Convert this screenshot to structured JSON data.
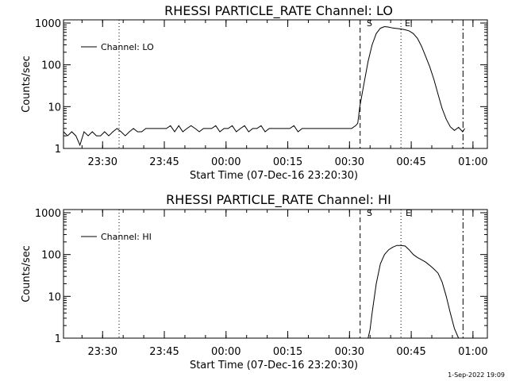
{
  "chart_data": [
    {
      "type": "line",
      "title": "RHESSI PARTICLE_RATE Channel: LO",
      "xlabel": "Start Time (07-Dec-16 23:20:30)",
      "ylabel": "Counts/sec",
      "yscale": "log",
      "ylim": [
        1,
        1000
      ],
      "xlim_minutes": [
        0,
        103
      ],
      "x_tick_labels": [
        "23:30",
        "23:45",
        "00:00",
        "00:15",
        "00:30",
        "00:45",
        "01:00"
      ],
      "y_tick_labels": [
        "1",
        "10",
        "100",
        "1000"
      ],
      "legend": "Channel: LO",
      "legend_position": "top-left",
      "markers": [
        {
          "label": "S",
          "style": "dashed",
          "at": "00:32:35"
        },
        {
          "label": "E",
          "style": "dotted",
          "at": "00:42:30"
        }
      ],
      "other_lines": [
        {
          "style": "dotted",
          "at": "23:34:00"
        },
        {
          "style": "dashdot",
          "at": "00:57:35"
        }
      ],
      "series": [
        {
          "name": "Channel: LO",
          "x_minutes": [
            0,
            1,
            2,
            3,
            4,
            5,
            6,
            7,
            8,
            9,
            10,
            11,
            12,
            13,
            14,
            15,
            16,
            17,
            18,
            19,
            20,
            21,
            22,
            23,
            24,
            25,
            26,
            27,
            28,
            29,
            30,
            31,
            32,
            33,
            34,
            35,
            36,
            37,
            38,
            39,
            40,
            41,
            42,
            43,
            44,
            45,
            46,
            47,
            48,
            49,
            50,
            51,
            52,
            53,
            54,
            55,
            56,
            57,
            58,
            59,
            60,
            61,
            62,
            63,
            64,
            65,
            66,
            67,
            68,
            69,
            70,
            71,
            71.5,
            72,
            73,
            74,
            75,
            76,
            77,
            78,
            79,
            80,
            81,
            82,
            83,
            84,
            85,
            86,
            87,
            88,
            89,
            90,
            91,
            92,
            93,
            94,
            95,
            96,
            97,
            97.5
          ],
          "values": [
            2.5,
            2.0,
            2.5,
            2.0,
            1.2,
            2.5,
            2.0,
            2.5,
            2.0,
            2.0,
            2.5,
            2.0,
            2.5,
            3.0,
            2.5,
            2.0,
            2.5,
            3.0,
            2.5,
            2.5,
            3.0,
            3.0,
            3.0,
            3.0,
            3.0,
            3.0,
            3.5,
            2.5,
            3.5,
            2.5,
            3.0,
            3.5,
            3.0,
            2.5,
            3.0,
            3.0,
            3.0,
            3.5,
            2.5,
            3.0,
            3.0,
            3.5,
            2.5,
            3.0,
            3.5,
            2.5,
            3.0,
            3.0,
            3.5,
            2.5,
            3.0,
            3.0,
            3.0,
            3.0,
            3.0,
            3.0,
            3.5,
            2.5,
            3.0,
            3.0,
            3.0,
            3.0,
            3.0,
            3.0,
            3.0,
            3.0,
            3.0,
            3.0,
            3.0,
            3.0,
            3.0,
            3.5,
            4.0,
            10,
            35,
            120,
            300,
            560,
            750,
            820,
            800,
            760,
            740,
            720,
            690,
            650,
            560,
            430,
            280,
            160,
            90,
            45,
            20,
            9,
            5,
            3.3,
            2.7,
            3.2,
            2.5,
            3.0
          ]
        }
      ]
    },
    {
      "type": "line",
      "title": "RHESSI PARTICLE_RATE Channel: HI",
      "xlabel": "Start Time (07-Dec-16 23:20:30)",
      "ylabel": "Counts/sec",
      "yscale": "log",
      "ylim": [
        1,
        1000
      ],
      "xlim_minutes": [
        0,
        103
      ],
      "x_tick_labels": [
        "23:30",
        "23:45",
        "00:00",
        "00:15",
        "00:30",
        "00:45",
        "01:00"
      ],
      "y_tick_labels": [
        "1",
        "10",
        "100",
        "1000"
      ],
      "legend": "Channel: HI",
      "legend_position": "top-left",
      "markers": [
        {
          "label": "S",
          "style": "dashed",
          "at": "00:32:35"
        },
        {
          "label": "E",
          "style": "dotted",
          "at": "00:42:30"
        }
      ],
      "other_lines": [
        {
          "style": "dotted",
          "at": "23:34:00"
        },
        {
          "style": "dashdot",
          "at": "00:57:35"
        }
      ],
      "series": [
        {
          "name": "Channel: HI",
          "x_minutes": [
            74,
            74.5,
            75,
            76,
            77,
            78,
            79,
            80,
            81,
            82,
            83,
            84,
            85,
            86,
            87,
            88,
            89,
            90,
            91,
            92,
            93,
            94,
            95,
            96
          ],
          "values": [
            1.0,
            1.6,
            4.0,
            20,
            60,
            100,
            130,
            150,
            165,
            165,
            160,
            130,
            100,
            85,
            75,
            66,
            55,
            45,
            36,
            22,
            10,
            4,
            1.7,
            1.0
          ]
        }
      ]
    }
  ],
  "timestamp": "1-Sep-2022 19:09"
}
